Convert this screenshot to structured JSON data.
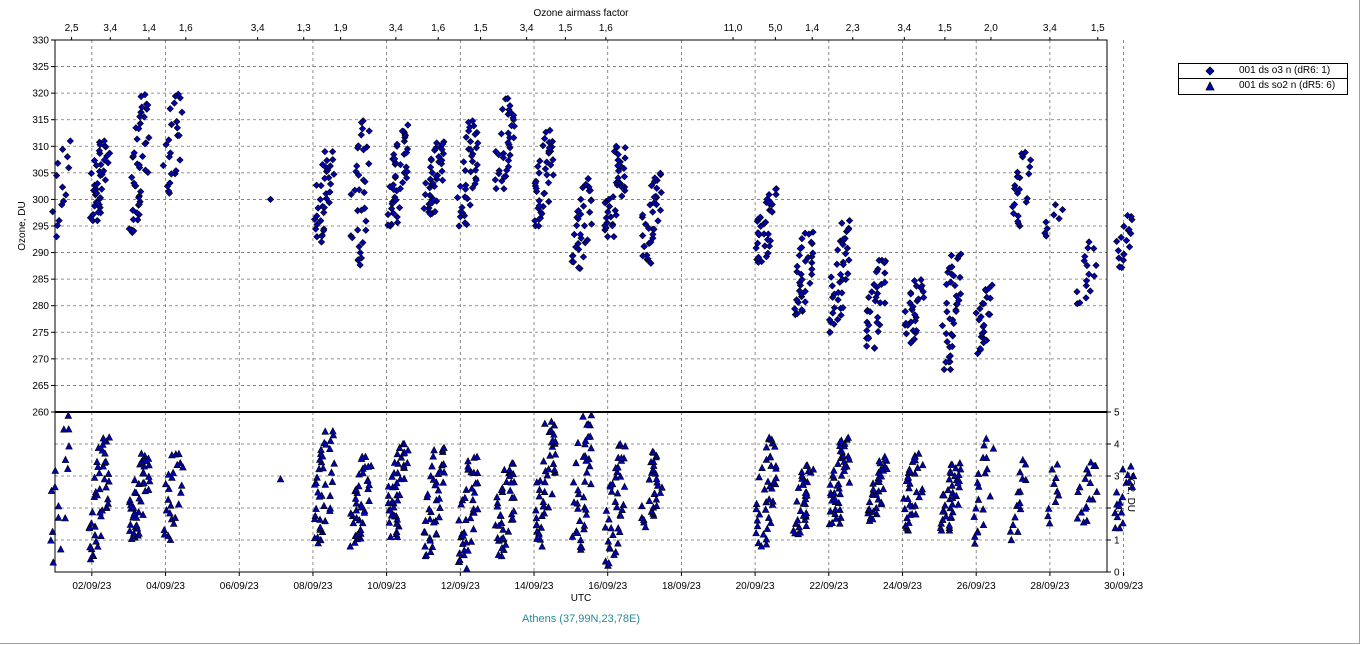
{
  "chart_data": {
    "type": "scatter",
    "top_axis_title": "Ozone airmass factor",
    "top_axis_labels": [
      {
        "x": 0.45,
        "label": "2,5"
      },
      {
        "x": 1.5,
        "label": "3,4"
      },
      {
        "x": 2.55,
        "label": "1,4"
      },
      {
        "x": 3.55,
        "label": "1,6"
      },
      {
        "x": 5.5,
        "label": "3,4"
      },
      {
        "x": 6.75,
        "label": "1,3"
      },
      {
        "x": 7.75,
        "label": "1,9"
      },
      {
        "x": 9.25,
        "label": "3,4"
      },
      {
        "x": 10.4,
        "label": "1,6"
      },
      {
        "x": 11.55,
        "label": "1,5"
      },
      {
        "x": 12.8,
        "label": "3,4"
      },
      {
        "x": 13.85,
        "label": "1,5"
      },
      {
        "x": 14.95,
        "label": "1,6"
      },
      {
        "x": 18.4,
        "label": "11,0"
      },
      {
        "x": 19.55,
        "label": "5,0"
      },
      {
        "x": 20.55,
        "label": "1,4"
      },
      {
        "x": 21.65,
        "label": "2,3"
      },
      {
        "x": 23.05,
        "label": "3,4"
      },
      {
        "x": 24.15,
        "label": "1,5"
      },
      {
        "x": 25.4,
        "label": "2,0"
      },
      {
        "x": 27.0,
        "label": "3,4"
      },
      {
        "x": 28.3,
        "label": "1,5"
      }
    ],
    "x_axis": {
      "label": "UTC",
      "range_days": [
        0.0,
        28.55
      ],
      "ticks": [
        {
          "x": 1,
          "label": "02/09/23"
        },
        {
          "x": 3,
          "label": "04/09/23"
        },
        {
          "x": 5,
          "label": "06/09/23"
        },
        {
          "x": 7,
          "label": "08/09/23"
        },
        {
          "x": 9,
          "label": "10/09/23"
        },
        {
          "x": 11,
          "label": "12/09/23"
        },
        {
          "x": 13,
          "label": "14/09/23"
        },
        {
          "x": 15,
          "label": "16/09/23"
        },
        {
          "x": 17,
          "label": "18/09/23"
        },
        {
          "x": 19,
          "label": "20/09/23"
        },
        {
          "x": 21,
          "label": "22/09/23"
        },
        {
          "x": 23,
          "label": "24/09/23"
        },
        {
          "x": 25,
          "label": "26/09/23"
        },
        {
          "x": 27,
          "label": "28/09/23"
        },
        {
          "x": 29,
          "label": "30/09/23"
        }
      ]
    },
    "y_axis_ozone": {
      "label": "Ozone, DU",
      "range": [
        260,
        330
      ],
      "ticks": [
        260,
        265,
        270,
        275,
        280,
        285,
        290,
        295,
        300,
        305,
        310,
        315,
        320,
        325,
        330
      ]
    },
    "y_axis_so2": {
      "label": "SO2, DU",
      "range": [
        0,
        5
      ],
      "ticks": [
        0,
        1,
        2,
        3,
        4,
        5
      ]
    },
    "grid": true,
    "legend_position": "right",
    "series": [
      {
        "name": "001 ds o3  n (dR6: 1)",
        "marker": "diamond",
        "color": "#0000b0",
        "clusters": [
          {
            "x": 0.15,
            "y_min": 293,
            "y_max": 311,
            "n": 14
          },
          {
            "x": 1.2,
            "y_min": 296,
            "y_max": 311,
            "n": 40
          },
          {
            "x": 2.3,
            "y_min": 293,
            "y_max": 320,
            "n": 45
          },
          {
            "x": 3.2,
            "y_min": 301,
            "y_max": 320,
            "n": 25
          },
          {
            "x": 6.0,
            "y_min": 300,
            "y_max": 300,
            "n": 1
          },
          {
            "x": 7.3,
            "y_min": 292,
            "y_max": 309,
            "n": 35
          },
          {
            "x": 8.3,
            "y_min": 287,
            "y_max": 315,
            "n": 35
          },
          {
            "x": 9.3,
            "y_min": 295,
            "y_max": 314,
            "n": 45
          },
          {
            "x": 10.3,
            "y_min": 297,
            "y_max": 311,
            "n": 40
          },
          {
            "x": 11.2,
            "y_min": 295,
            "y_max": 315,
            "n": 40
          },
          {
            "x": 12.2,
            "y_min": 302,
            "y_max": 319,
            "n": 35
          },
          {
            "x": 13.3,
            "y_min": 295,
            "y_max": 313,
            "n": 40
          },
          {
            "x": 14.3,
            "y_min": 287,
            "y_max": 304,
            "n": 35
          },
          {
            "x": 15.2,
            "y_min": 293,
            "y_max": 310,
            "n": 40
          },
          {
            "x": 16.2,
            "y_min": 288,
            "y_max": 305,
            "n": 35
          },
          {
            "x": 19.3,
            "y_min": 288,
            "y_max": 302,
            "n": 35
          },
          {
            "x": 20.3,
            "y_min": 278,
            "y_max": 294,
            "n": 35
          },
          {
            "x": 21.3,
            "y_min": 275,
            "y_max": 296,
            "n": 40
          },
          {
            "x": 22.3,
            "y_min": 272,
            "y_max": 289,
            "n": 35
          },
          {
            "x": 23.3,
            "y_min": 273,
            "y_max": 285,
            "n": 30
          },
          {
            "x": 24.3,
            "y_min": 268,
            "y_max": 290,
            "n": 40
          },
          {
            "x": 25.2,
            "y_min": 271,
            "y_max": 284,
            "n": 25
          },
          {
            "x": 26.2,
            "y_min": 295,
            "y_max": 309,
            "n": 22
          },
          {
            "x": 27.1,
            "y_min": 293,
            "y_max": 299,
            "n": 8
          },
          {
            "x": 28.0,
            "y_min": 280,
            "y_max": 292,
            "n": 16
          },
          {
            "x": 29.0,
            "y_min": 287,
            "y_max": 297,
            "n": 18
          }
        ]
      },
      {
        "name": "001 ds so2 n (dR5: 6)",
        "marker": "triangle",
        "color": "#0000b0",
        "clusters": [
          {
            "x": 0.15,
            "y_min": 0.3,
            "y_max": 4.9,
            "n": 16
          },
          {
            "x": 1.2,
            "y_min": 0.4,
            "y_max": 4.3,
            "n": 45
          },
          {
            "x": 2.3,
            "y_min": 1.0,
            "y_max": 3.7,
            "n": 45
          },
          {
            "x": 3.2,
            "y_min": 1.0,
            "y_max": 3.8,
            "n": 25
          },
          {
            "x": 6.0,
            "y_min": 2.9,
            "y_max": 2.9,
            "n": 1
          },
          {
            "x": 7.3,
            "y_min": 0.9,
            "y_max": 4.4,
            "n": 40
          },
          {
            "x": 8.3,
            "y_min": 0.8,
            "y_max": 3.6,
            "n": 40
          },
          {
            "x": 9.3,
            "y_min": 1.1,
            "y_max": 4.0,
            "n": 45
          },
          {
            "x": 10.3,
            "y_min": 0.5,
            "y_max": 3.9,
            "n": 40
          },
          {
            "x": 11.2,
            "y_min": 0.1,
            "y_max": 3.6,
            "n": 40
          },
          {
            "x": 12.2,
            "y_min": 0.5,
            "y_max": 3.4,
            "n": 40
          },
          {
            "x": 13.3,
            "y_min": 0.8,
            "y_max": 4.7,
            "n": 45
          },
          {
            "x": 14.3,
            "y_min": 0.7,
            "y_max": 4.9,
            "n": 40
          },
          {
            "x": 15.2,
            "y_min": 0.2,
            "y_max": 4.0,
            "n": 40
          },
          {
            "x": 16.2,
            "y_min": 1.4,
            "y_max": 3.8,
            "n": 30
          },
          {
            "x": 19.3,
            "y_min": 0.8,
            "y_max": 4.2,
            "n": 40
          },
          {
            "x": 20.3,
            "y_min": 1.1,
            "y_max": 3.4,
            "n": 35
          },
          {
            "x": 21.3,
            "y_min": 1.5,
            "y_max": 4.2,
            "n": 45
          },
          {
            "x": 22.3,
            "y_min": 1.6,
            "y_max": 3.6,
            "n": 35
          },
          {
            "x": 23.3,
            "y_min": 1.3,
            "y_max": 3.7,
            "n": 35
          },
          {
            "x": 24.3,
            "y_min": 1.3,
            "y_max": 3.4,
            "n": 40
          },
          {
            "x": 25.2,
            "y_min": 0.8,
            "y_max": 4.2,
            "n": 20
          },
          {
            "x": 26.2,
            "y_min": 1.0,
            "y_max": 3.5,
            "n": 15
          },
          {
            "x": 27.1,
            "y_min": 1.5,
            "y_max": 3.4,
            "n": 10
          },
          {
            "x": 28.0,
            "y_min": 1.5,
            "y_max": 3.5,
            "n": 18
          },
          {
            "x": 29.0,
            "y_min": 1.3,
            "y_max": 3.3,
            "n": 18
          }
        ]
      }
    ],
    "location_caption": "Athens (37,99N,23,78E)"
  }
}
